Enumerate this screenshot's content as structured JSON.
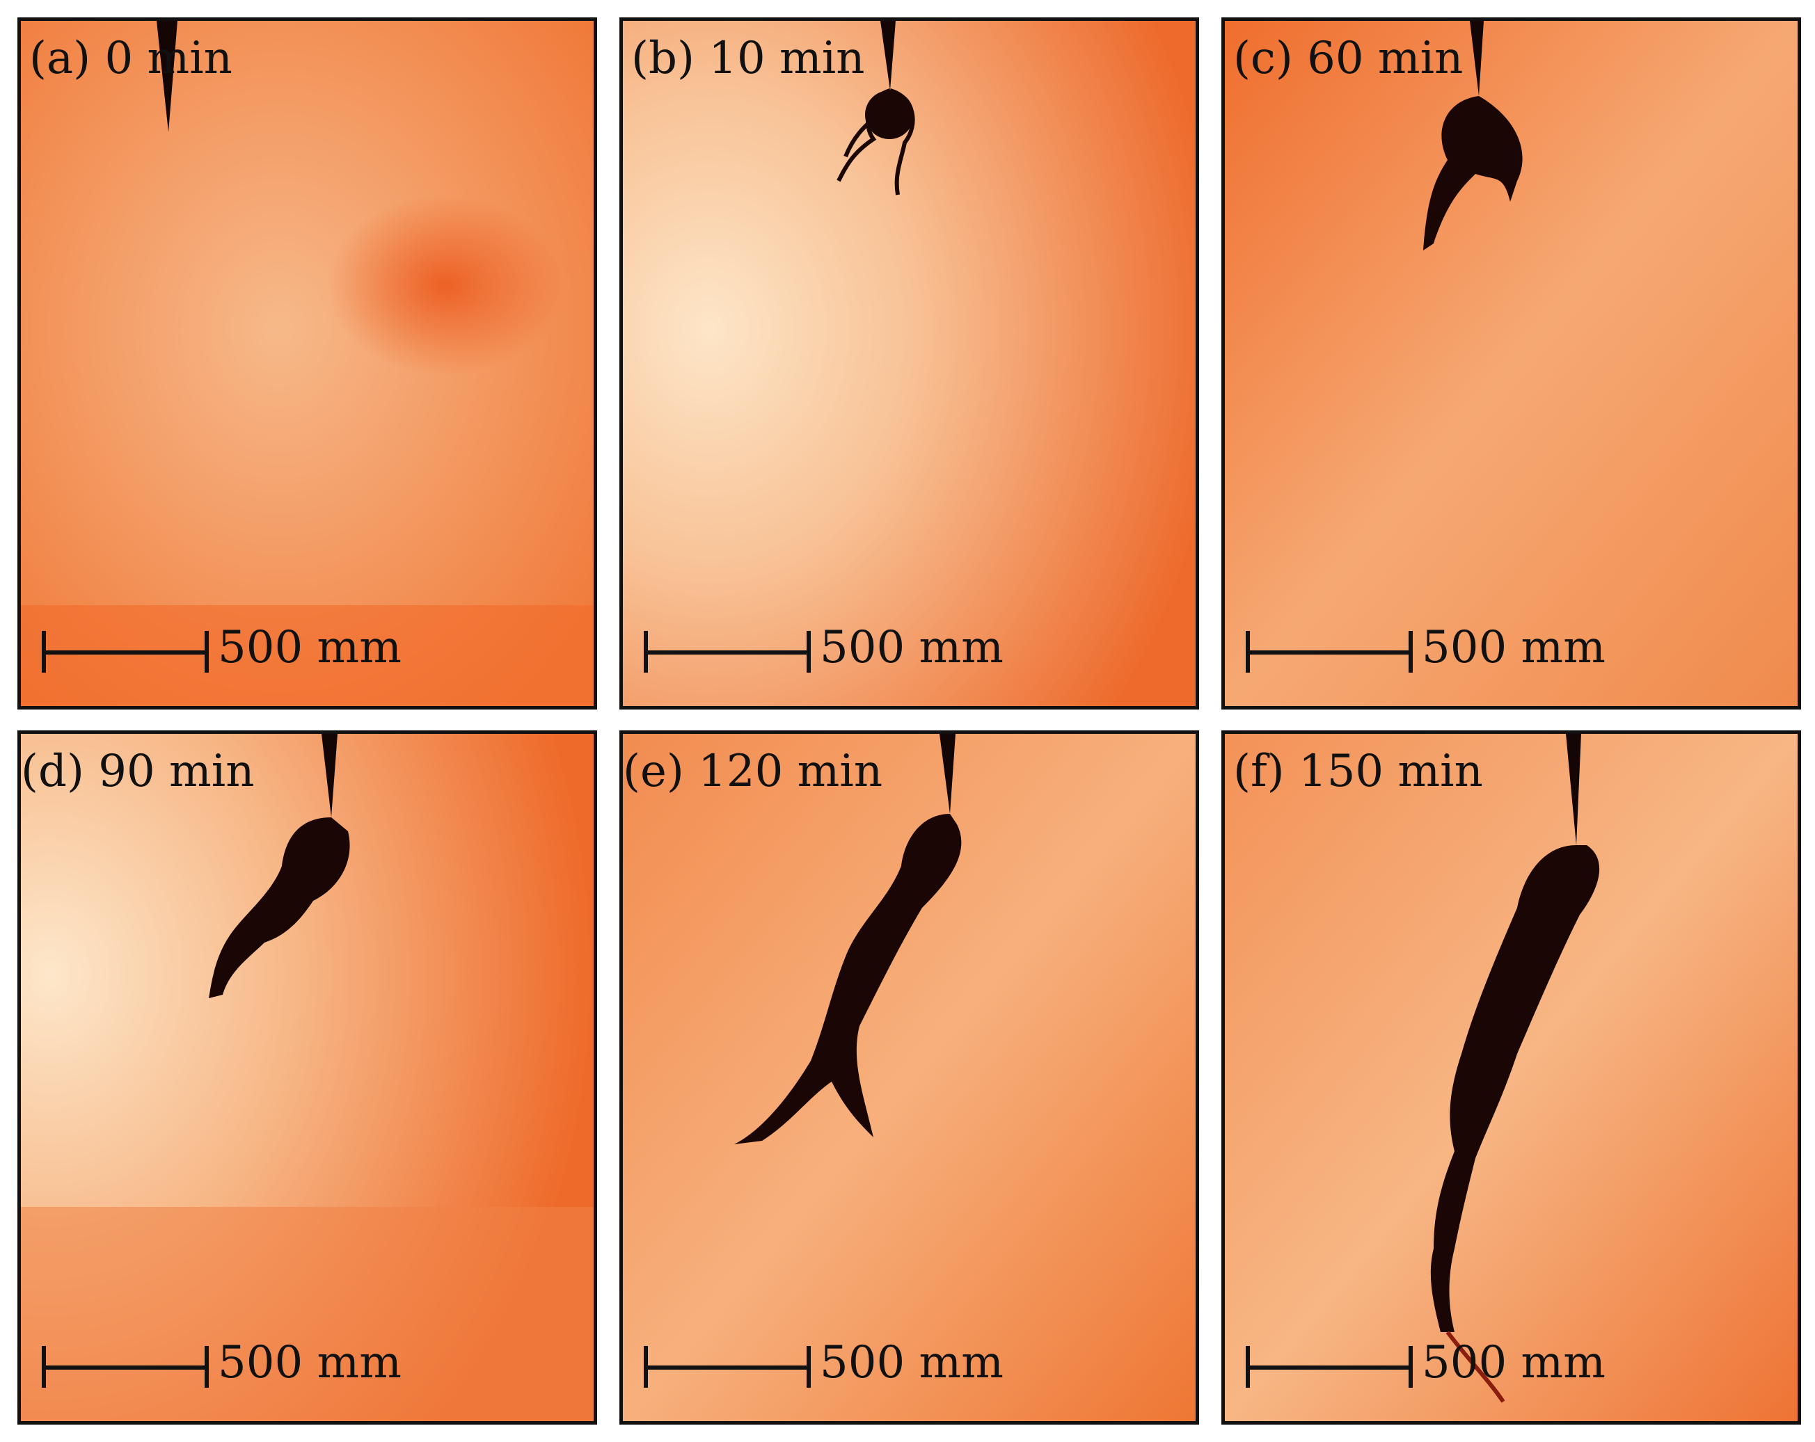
{
  "panels": [
    {
      "label": "(a) 0 min",
      "scale": "500 mm"
    },
    {
      "label": "(b) 10 min",
      "scale": "500 mm"
    },
    {
      "label": "(c) 60 min",
      "scale": "500 mm"
    },
    {
      "label": "(d) 90 min",
      "scale": "500 mm"
    },
    {
      "label": "(e) 120 min",
      "scale": "500 mm"
    },
    {
      "label": "(f) 150 min",
      "scale": "500 mm"
    }
  ],
  "colors": {
    "substrate_orange": "#f07a3a",
    "substrate_light": "#fbe0c0",
    "dendrite_dark": "#1a0604",
    "border": "#111111"
  }
}
